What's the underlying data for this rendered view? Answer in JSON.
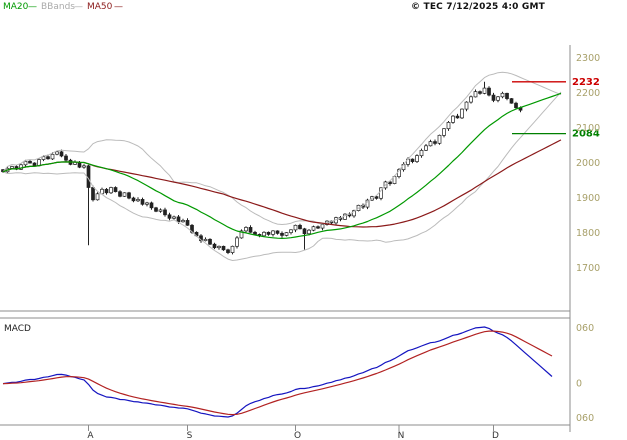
{
  "meta": {
    "copyright": "© TEC 7/12/2025 4:0 GMT"
  },
  "legend": {
    "ma20": "MA20",
    "bbands": "BBands",
    "ma50": "MA50",
    "dash": "—"
  },
  "macd": {
    "title": "MACD"
  },
  "chart_data": {
    "type": "candlestick",
    "title": "",
    "xlabel": "",
    "ylabel": "",
    "ylim": [
      1650,
      2350
    ],
    "grid": false,
    "price_axis": {
      "ticks": [
        2300,
        2200,
        2100,
        2000,
        1900,
        1800,
        1700
      ]
    },
    "macd_axis": {
      "labels": [
        "060",
        "0",
        "060"
      ]
    },
    "months": {
      "labels": [
        "A",
        "S",
        "O",
        "N",
        "D"
      ],
      "indices": [
        19,
        41,
        65,
        88,
        109
      ]
    },
    "levels": [
      {
        "value": 2232,
        "color": "#cc0000"
      },
      {
        "value": 2084,
        "color": "#008000"
      }
    ],
    "closes": [
      1975,
      1985,
      1990,
      1982,
      1995,
      2005,
      2000,
      1992,
      2010,
      2018,
      2012,
      2025,
      2032,
      2020,
      2008,
      1996,
      2002,
      1988,
      1992,
      1930,
      1895,
      1912,
      1925,
      1915,
      1930,
      1918,
      1905,
      1915,
      1900,
      1892,
      1896,
      1882,
      1886,
      1872,
      1862,
      1866,
      1852,
      1842,
      1846,
      1832,
      1836,
      1822,
      1802,
      1792,
      1778,
      1782,
      1768,
      1758,
      1762,
      1752,
      1744,
      1762,
      1786,
      1806,
      1816,
      1802,
      1796,
      1792,
      1802,
      1796,
      1806,
      1799,
      1793,
      1801,
      1809,
      1822,
      1812,
      1798,
      1808,
      1818,
      1814,
      1824,
      1834,
      1829,
      1844,
      1839,
      1854,
      1849,
      1864,
      1879,
      1874,
      1894,
      1904,
      1899,
      1929,
      1946,
      1941,
      1961,
      1981,
      1996,
      2011,
      2004,
      2021,
      2036,
      2049,
      2061,
      2056,
      2079,
      2098,
      2116,
      2134,
      2129,
      2154,
      2174,
      2189,
      2204,
      2199,
      2214,
      2194,
      2179,
      2189,
      2199,
      2184,
      2171,
      2158,
      2151
    ],
    "wick_overrides": [
      {
        "index": 19,
        "low": 1765
      },
      {
        "index": 67,
        "low": 1752
      },
      {
        "index": 107,
        "high": 2232
      }
    ],
    "indicators": {
      "ma_fast": 20,
      "ma_slow": 50,
      "bb_sigma": 2,
      "macd": [
        12,
        26,
        9
      ]
    },
    "colors": {
      "ma20": "#009900",
      "ma50": "#8b1a1a",
      "bbands": "#bbbbbb",
      "macd_line": "#1515c0",
      "macd_signal": "#b22222",
      "axis_text": "#a8a06a",
      "candle": "#222222",
      "border": "#8c8c8c",
      "month_text": "#333333"
    }
  }
}
